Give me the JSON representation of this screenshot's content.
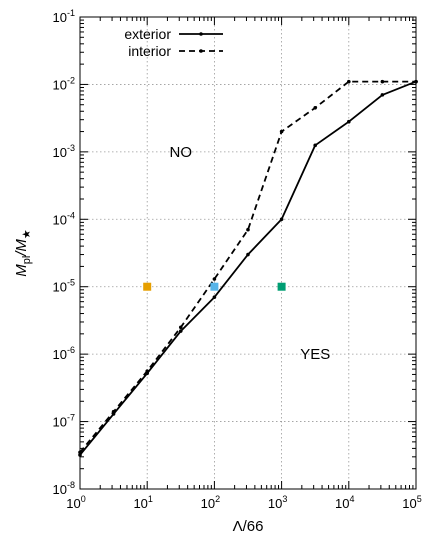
{
  "chart_data": {
    "type": "line",
    "xlabel": "Λ/66",
    "ylabel": {
      "main": "M",
      "sub1": "pl",
      "slash": "/M",
      "sub2": "★"
    },
    "x_scale": "log",
    "y_scale": "log",
    "xlim": [
      1,
      100000
    ],
    "ylim": [
      1e-08,
      0.1
    ],
    "grid": "dotted, at major decades",
    "legend_position": "top-left",
    "x_ticks": [
      {
        "value": 1,
        "base": "10",
        "exp": "0"
      },
      {
        "value": 10,
        "base": "10",
        "exp": "1"
      },
      {
        "value": 100,
        "base": "10",
        "exp": "2"
      },
      {
        "value": 1000,
        "base": "10",
        "exp": "3"
      },
      {
        "value": 10000,
        "base": "10",
        "exp": "4"
      },
      {
        "value": 100000,
        "base": "10",
        "exp": "5"
      }
    ],
    "y_ticks": [
      {
        "value": 1e-08,
        "base": "10",
        "exp": "-8"
      },
      {
        "value": 1e-07,
        "base": "10",
        "exp": "-7"
      },
      {
        "value": 1e-06,
        "base": "10",
        "exp": "-6"
      },
      {
        "value": 1e-05,
        "base": "10",
        "exp": "-5"
      },
      {
        "value": 0.0001,
        "base": "10",
        "exp": "-4"
      },
      {
        "value": 0.001,
        "base": "10",
        "exp": "-3"
      },
      {
        "value": 0.01,
        "base": "10",
        "exp": "-2"
      },
      {
        "value": 0.1,
        "base": "10",
        "exp": "-1"
      }
    ],
    "series": [
      {
        "name": "exterior",
        "style": "solid",
        "color": "#000000",
        "points": [
          [
            1,
            3.2e-08
          ],
          [
            3.16,
            1.3e-07
          ],
          [
            10,
            5.2e-07
          ],
          [
            31.6,
            2.2e-06
          ],
          [
            100,
            7e-06
          ],
          [
            316,
            3e-05
          ],
          [
            1000,
            0.0001
          ],
          [
            3162,
            0.00125
          ],
          [
            10000,
            0.0028
          ],
          [
            31623,
            0.007
          ],
          [
            100000,
            0.011
          ]
        ]
      },
      {
        "name": "interior",
        "style": "dashed",
        "color": "#000000",
        "points": [
          [
            1,
            3.5e-08
          ],
          [
            3.16,
            1.4e-07
          ],
          [
            10,
            5.6e-07
          ],
          [
            31.6,
            2.5e-06
          ],
          [
            100,
            1.3e-05
          ],
          [
            316,
            7e-05
          ],
          [
            1000,
            0.002
          ],
          [
            3162,
            0.0045
          ],
          [
            10000,
            0.011
          ],
          [
            31623,
            0.011
          ],
          [
            100000,
            0.011
          ]
        ]
      }
    ],
    "markers": [
      {
        "x": 10,
        "y": 1e-05,
        "color": "#e69f00"
      },
      {
        "x": 100,
        "y": 1e-05,
        "color": "#56b4e9"
      },
      {
        "x": 1000,
        "y": 1e-05,
        "color": "#009e73"
      }
    ],
    "annotations": [
      {
        "text": "NO",
        "x": 31.6,
        "y": 0.001
      },
      {
        "text": "YES",
        "x": 3162,
        "y": 1e-06
      }
    ]
  }
}
